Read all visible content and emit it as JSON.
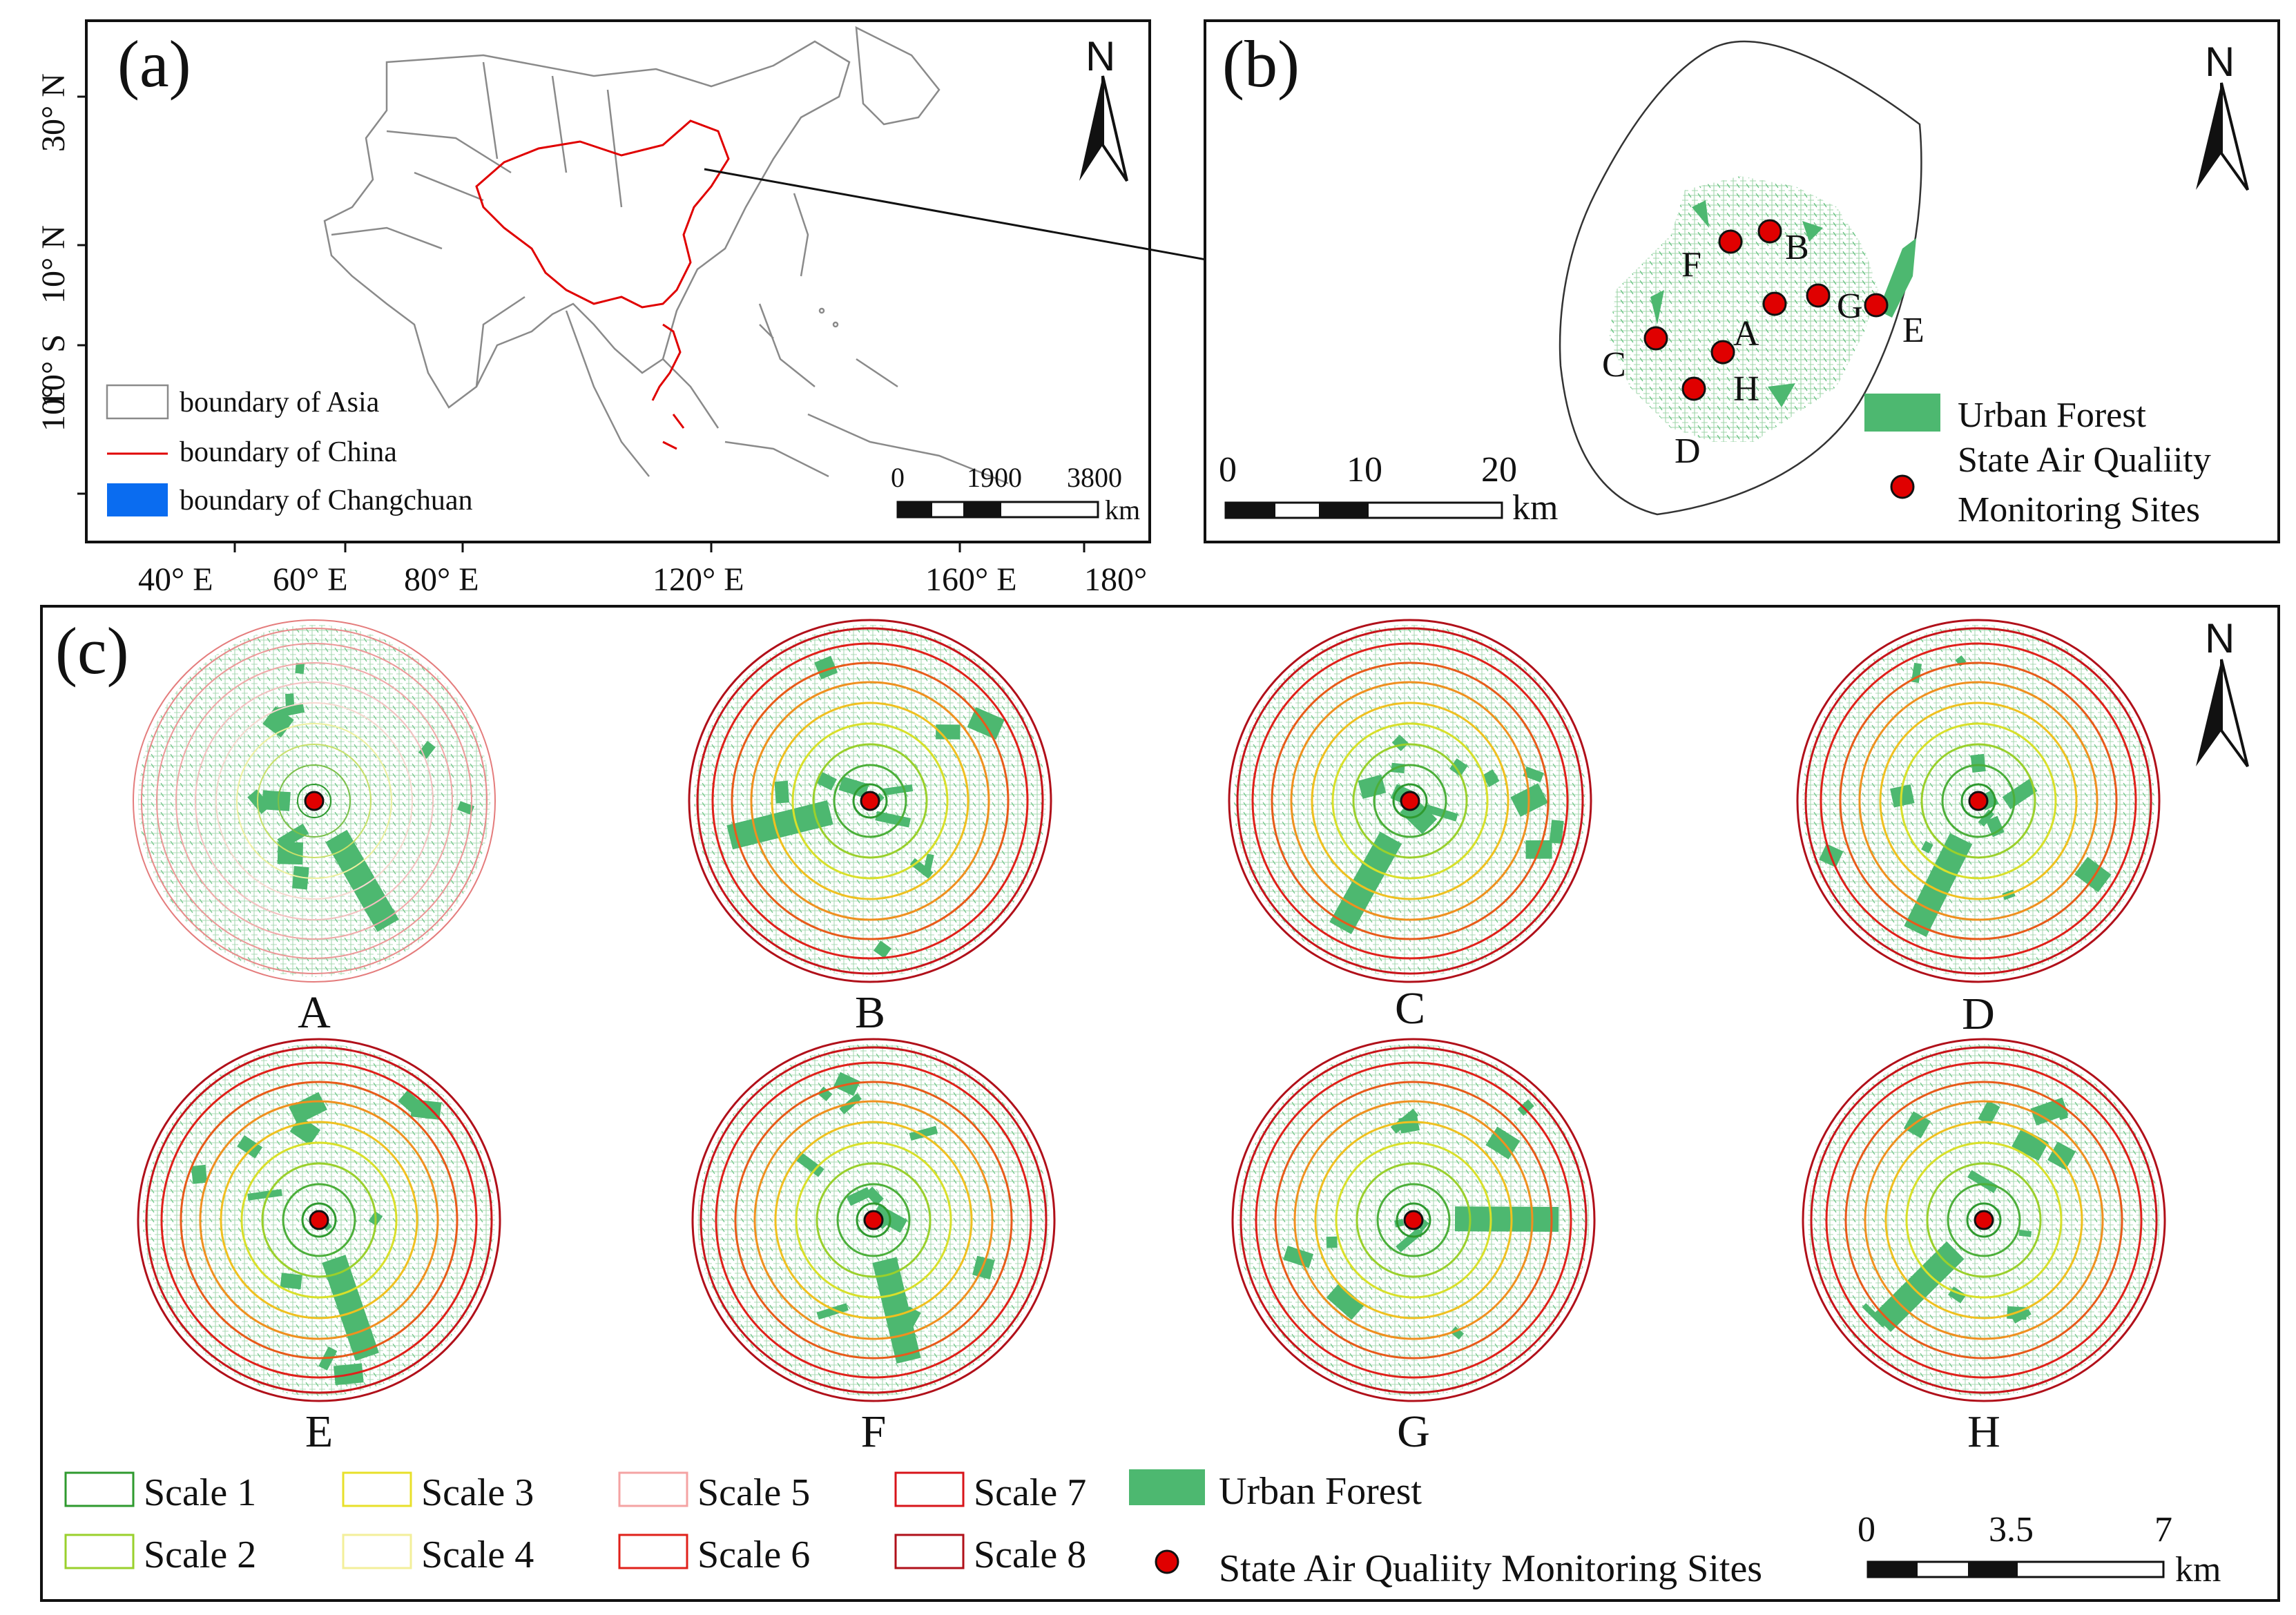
{
  "panel_a": {
    "label": "(a)",
    "lat_ticks": [
      "30° N",
      "10° N",
      "10° S",
      "10°"
    ],
    "lon_ticks": [
      "40° E",
      "60° E",
      "80° E",
      "120° E",
      "160° E",
      "180°"
    ],
    "legend": [
      {
        "label": "boundary of Asia",
        "color": "#8a8a8a"
      },
      {
        "label": "boundary of China",
        "color": "#e00000"
      },
      {
        "label": "boundary of Changchuan",
        "color": "#0a6cf0"
      }
    ],
    "scale_ticks": [
      "0",
      "1900",
      "3800"
    ],
    "scale_unit": "km"
  },
  "panel_b": {
    "label": "(b)",
    "sites": [
      "A",
      "B",
      "C",
      "D",
      "E",
      "F",
      "G",
      "H"
    ],
    "legend": [
      {
        "label": "Urban Forest",
        "color": "#4db870"
      },
      {
        "label": "State Air Qualiity Monitoring Sites",
        "color": "#e00000"
      }
    ],
    "legend_forest_line1": "Urban Forest",
    "legend_site_line1": "State Air Qualiity",
    "legend_site_line2": "Monitoring Sites",
    "scale_ticks": [
      "0",
      "10",
      "20"
    ],
    "scale_unit": "km"
  },
  "panel_c": {
    "label": "(c)",
    "buffers": [
      "A",
      "B",
      "C",
      "D",
      "E",
      "F",
      "G",
      "H"
    ],
    "scales": [
      {
        "label": "Scale 1",
        "color": "#2f9a2f"
      },
      {
        "label": "Scale 2",
        "color": "#9ad02c"
      },
      {
        "label": "Scale 3",
        "color": "#e8e02a"
      },
      {
        "label": "Scale 4",
        "color": "#f3ef9a"
      },
      {
        "label": "Scale 5",
        "color": "#f4a3a3"
      },
      {
        "label": "Scale 6",
        "color": "#e0201a"
      },
      {
        "label": "Scale 7",
        "color": "#d8141a"
      },
      {
        "label": "Scale 8",
        "color": "#b0101a"
      }
    ],
    "ring_colors_active": [
      "#2f9a2f",
      "#4caf3a",
      "#9ad02c",
      "#d8e02a",
      "#f0c020",
      "#f09020",
      "#e85a1a",
      "#e0201a",
      "#c8141a",
      "#b0101a"
    ],
    "ring_colors_faint": [
      "#2f9a2f",
      "#7cc04a",
      "#c8e06a",
      "#eef0a0",
      "#f6d8d0",
      "#f3c0c0",
      "#f0a8a8",
      "#ec9898",
      "#e88a8a",
      "#e47c7c"
    ],
    "legend_forest": "Urban Forest",
    "legend_site": "State Air Qualiity Monitoring Sites",
    "scale_ticks": [
      "0",
      "3.5",
      "7"
    ],
    "scale_unit": "km"
  },
  "north": "N",
  "colors": {
    "forest": "#4db870",
    "site": "#e00000",
    "changchun": "#0a6cf0"
  }
}
